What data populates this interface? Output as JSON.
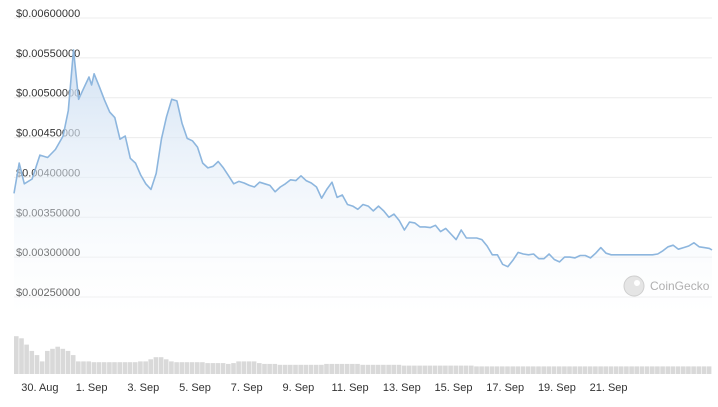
{
  "chart_data": {
    "type": "area",
    "title": "",
    "xlabel": "",
    "ylabel": "",
    "ylim": [
      0.0025,
      0.006
    ],
    "yticks": [
      "$0.00600000",
      "$0.00550000",
      "$0.00500000",
      "$0.00450000",
      "$0.00400000",
      "$0.00350000",
      "$0.00300000",
      "$0.00250000"
    ],
    "ytick_values": [
      0.006,
      0.0055,
      0.005,
      0.0045,
      0.004,
      0.0035,
      0.003,
      0.0025
    ],
    "xticks": [
      "30. Aug",
      "1. Sep",
      "3. Sep",
      "5. Sep",
      "7. Sep",
      "9. Sep",
      "11. Sep",
      "13. Sep",
      "15. Sep",
      "17. Sep",
      "19. Sep",
      "21. Sep"
    ],
    "xtick_days": [
      1,
      3,
      5,
      7,
      9,
      11,
      13,
      15,
      17,
      19,
      21,
      23
    ],
    "x_range_days": [
      0,
      27
    ],
    "grid": true,
    "colors": {
      "line": "#8db6de",
      "fill": "#dbe8f5",
      "volume": "#d9d9d9",
      "watermark": "#b0b0b0"
    },
    "series": [
      {
        "values_x_days": [
          0,
          0.2,
          0.4,
          0.7,
          1.0,
          1.3,
          1.6,
          1.9,
          2.1,
          2.3,
          2.5,
          2.7,
          2.9,
          3.0,
          3.1,
          3.3,
          3.5,
          3.7,
          3.9,
          4.1,
          4.3,
          4.5,
          4.7,
          4.9,
          5.1,
          5.3,
          5.5,
          5.7,
          5.9,
          6.1,
          6.3,
          6.5,
          6.7,
          6.9,
          7.1,
          7.3,
          7.5,
          7.7,
          7.9,
          8.1,
          8.3,
          8.5,
          8.7,
          8.9,
          9.1,
          9.3,
          9.5,
          9.7,
          9.9,
          10.1,
          10.3,
          10.5,
          10.7,
          10.9,
          11.1,
          11.3,
          11.5,
          11.7,
          11.9,
          12.1,
          12.3,
          12.5,
          12.7,
          12.9,
          13.1,
          13.3,
          13.5,
          13.7,
          13.9,
          14.1,
          14.3,
          14.5,
          14.7,
          14.9,
          15.1,
          15.3,
          15.5,
          15.7,
          15.9,
          16.1,
          16.3,
          16.5,
          16.7,
          16.9,
          17.1,
          17.3,
          17.5,
          17.7,
          17.9,
          18.1,
          18.3,
          18.5,
          18.7,
          18.9,
          19.1,
          19.3,
          19.5,
          19.7,
          19.9,
          20.1,
          20.3,
          20.5,
          20.7,
          20.9,
          21.1,
          21.3,
          21.5,
          21.7,
          21.9,
          22.1,
          22.3,
          22.5,
          22.7,
          22.9,
          23.1,
          23.3,
          23.5,
          23.7,
          23.9,
          24.1,
          24.3,
          24.5,
          24.7,
          24.9,
          25.1,
          25.3,
          25.5,
          25.7,
          25.9,
          26.1,
          26.3,
          26.5,
          26.7,
          26.9,
          27.0
        ],
        "values": [
          0.0038,
          0.00418,
          0.00392,
          0.00398,
          0.00428,
          0.00425,
          0.00435,
          0.00452,
          0.00484,
          0.0056,
          0.00498,
          0.00512,
          0.00526,
          0.00516,
          0.0053,
          0.00514,
          0.00497,
          0.00482,
          0.00475,
          0.00448,
          0.00452,
          0.00424,
          0.00418,
          0.00403,
          0.00392,
          0.00385,
          0.00405,
          0.00448,
          0.00476,
          0.00498,
          0.00496,
          0.00468,
          0.00449,
          0.00446,
          0.00438,
          0.00418,
          0.00412,
          0.00414,
          0.0042,
          0.00412,
          0.00402,
          0.00392,
          0.00395,
          0.00393,
          0.0039,
          0.00388,
          0.00394,
          0.00392,
          0.0039,
          0.00382,
          0.00388,
          0.00392,
          0.00397,
          0.00396,
          0.00402,
          0.00396,
          0.00393,
          0.00388,
          0.00374,
          0.00385,
          0.00394,
          0.00375,
          0.00378,
          0.00366,
          0.00364,
          0.0036,
          0.00366,
          0.00364,
          0.00358,
          0.00364,
          0.00358,
          0.0035,
          0.00354,
          0.00346,
          0.00334,
          0.00344,
          0.00343,
          0.00338,
          0.00338,
          0.00337,
          0.0034,
          0.00332,
          0.00336,
          0.00329,
          0.00322,
          0.00334,
          0.00324,
          0.00324,
          0.00324,
          0.00322,
          0.00314,
          0.00303,
          0.00303,
          0.00291,
          0.00288,
          0.00296,
          0.00306,
          0.00304,
          0.00303,
          0.00304,
          0.00298,
          0.00298,
          0.00304,
          0.00297,
          0.00294,
          0.003,
          0.003,
          0.00299,
          0.00302,
          0.00302,
          0.00299,
          0.00305,
          0.00312,
          0.00305,
          0.00303,
          0.00303,
          0.00303,
          0.00303,
          0.00303,
          0.00303,
          0.00303,
          0.00303,
          0.00303,
          0.00304,
          0.00308,
          0.00313,
          0.00315,
          0.0031,
          0.00312,
          0.00314,
          0.00318,
          0.00313,
          0.00312,
          0.00311,
          0.00309
        ],
        "volume": [
          0.9,
          0.85,
          0.7,
          0.55,
          0.45,
          0.3,
          0.55,
          0.6,
          0.65,
          0.6,
          0.55,
          0.45,
          0.3,
          0.3,
          0.3,
          0.28,
          0.28,
          0.28,
          0.28,
          0.28,
          0.28,
          0.28,
          0.28,
          0.28,
          0.3,
          0.3,
          0.35,
          0.4,
          0.4,
          0.35,
          0.3,
          0.28,
          0.28,
          0.28,
          0.28,
          0.28,
          0.28,
          0.26,
          0.26,
          0.26,
          0.26,
          0.24,
          0.26,
          0.3,
          0.3,
          0.3,
          0.3,
          0.26,
          0.24,
          0.24,
          0.24,
          0.22,
          0.22,
          0.22,
          0.22,
          0.22,
          0.22,
          0.22,
          0.22,
          0.22,
          0.24,
          0.24,
          0.24,
          0.24,
          0.24,
          0.24,
          0.24,
          0.22,
          0.22,
          0.22,
          0.22,
          0.22,
          0.22,
          0.22,
          0.22,
          0.2,
          0.2,
          0.2,
          0.2,
          0.2,
          0.2,
          0.2,
          0.2,
          0.2,
          0.2,
          0.2,
          0.2,
          0.2,
          0.2,
          0.18,
          0.18,
          0.18,
          0.18,
          0.18,
          0.18,
          0.18,
          0.18,
          0.18,
          0.18,
          0.18,
          0.18,
          0.18,
          0.18,
          0.18,
          0.18,
          0.18,
          0.18,
          0.18,
          0.18,
          0.18,
          0.18,
          0.18,
          0.18,
          0.18,
          0.18,
          0.18,
          0.18,
          0.18,
          0.18,
          0.18,
          0.18,
          0.18,
          0.18,
          0.18,
          0.18,
          0.18,
          0.18,
          0.18,
          0.18,
          0.18,
          0.18,
          0.18,
          0.18,
          0.18,
          0.18
        ]
      }
    ]
  },
  "watermark": {
    "text": "CoinGecko",
    "icon": "coingecko-logo-icon"
  }
}
